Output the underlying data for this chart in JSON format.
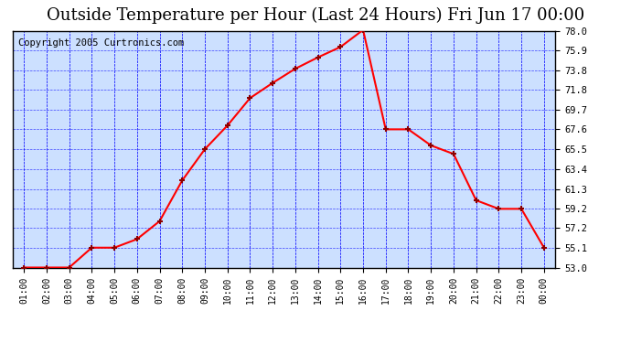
{
  "title": "Outside Temperature per Hour (Last 24 Hours) Fri Jun 17 00:00",
  "copyright": "Copyright 2005 Curtronics.com",
  "hours": [
    "01:00",
    "02:00",
    "03:00",
    "04:00",
    "05:00",
    "06:00",
    "07:00",
    "08:00",
    "09:00",
    "10:00",
    "11:00",
    "12:00",
    "13:00",
    "14:00",
    "15:00",
    "16:00",
    "17:00",
    "18:00",
    "19:00",
    "20:00",
    "21:00",
    "22:00",
    "23:00",
    "00:00"
  ],
  "temperatures": [
    53.0,
    53.0,
    53.0,
    55.1,
    55.1,
    56.0,
    57.9,
    62.2,
    65.5,
    68.0,
    70.9,
    72.5,
    74.0,
    75.2,
    76.3,
    78.1,
    67.6,
    67.6,
    65.9,
    65.0,
    60.1,
    59.2,
    59.2,
    55.1
  ],
  "yticks": [
    53.0,
    55.1,
    57.2,
    59.2,
    61.3,
    63.4,
    65.5,
    67.6,
    69.7,
    71.8,
    73.8,
    75.9,
    78.0
  ],
  "ymin": 53.0,
  "ymax": 78.0,
  "line_color": "red",
  "marker_color": "darkred",
  "bg_color": "#cce0ff",
  "grid_color": "blue",
  "title_fontsize": 13,
  "copyright_fontsize": 7.5
}
